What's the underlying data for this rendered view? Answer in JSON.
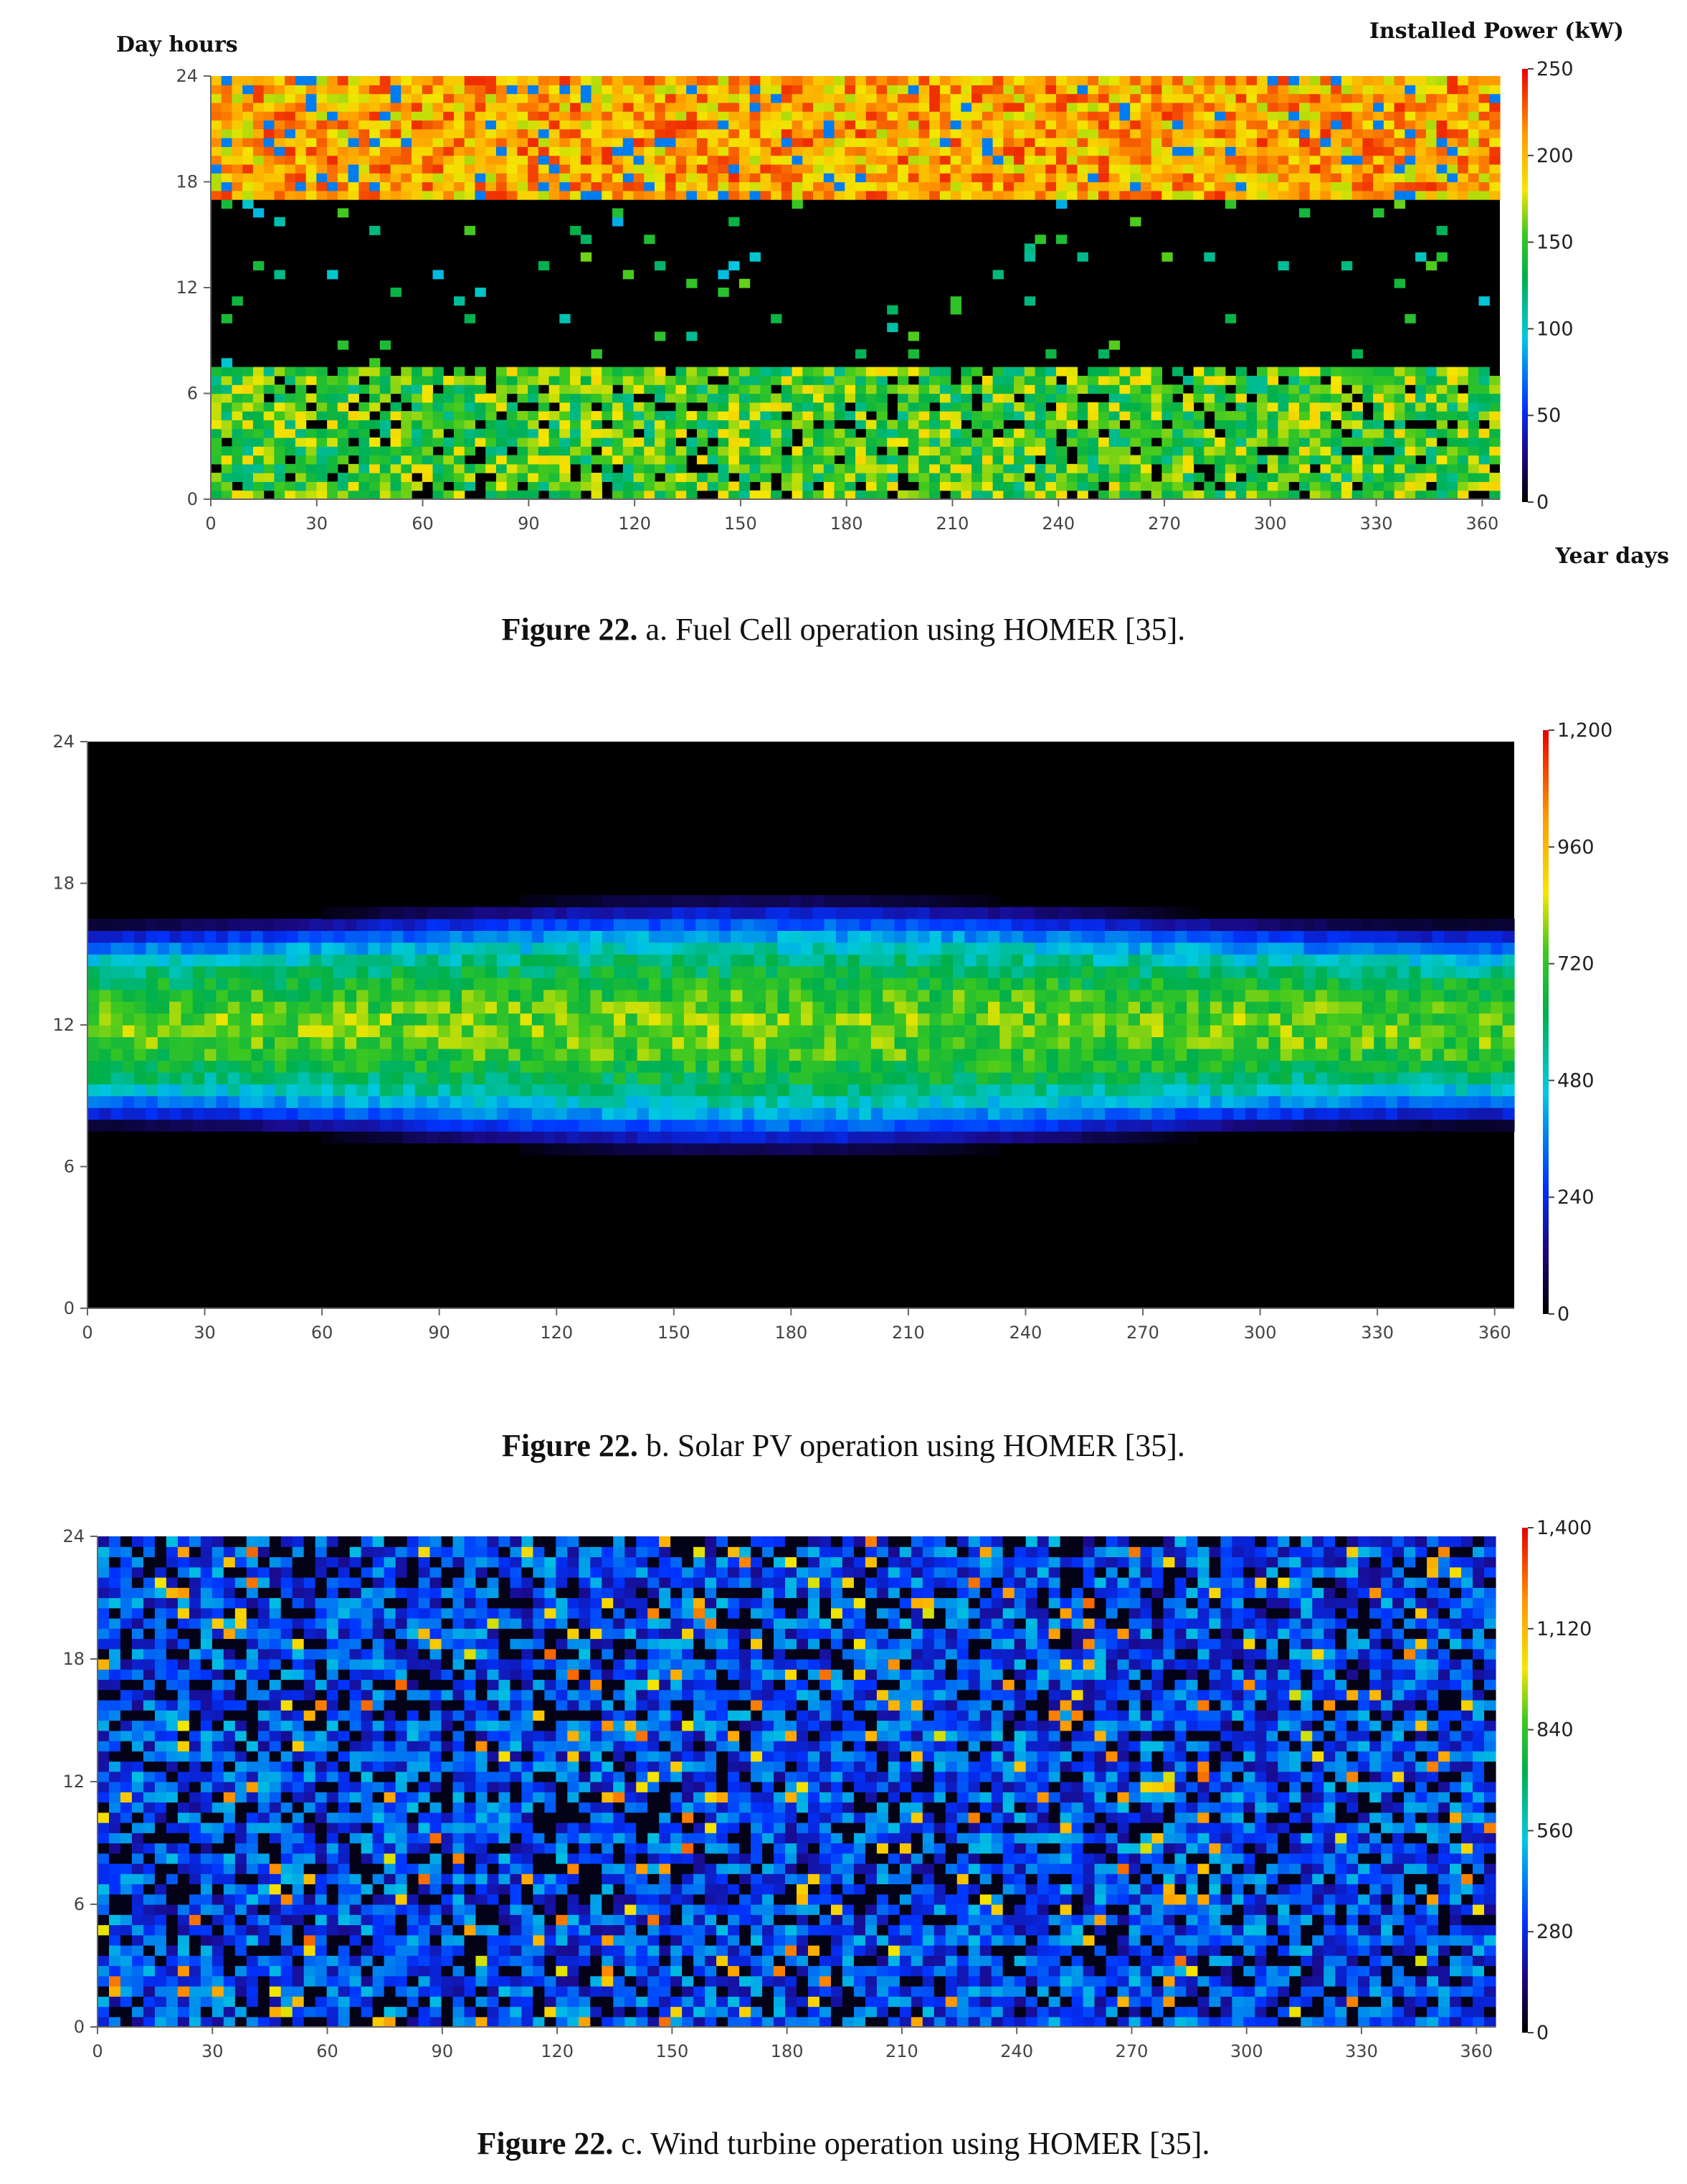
{
  "chart_data": [
    {
      "type": "heatmap",
      "id": "fuel-cell",
      "ylabel": "Day hours",
      "xlabel": "Year days",
      "colorbar_label": "Installed Power (kW)",
      "x_ticks": [
        "0",
        "30",
        "60",
        "90",
        "120",
        "150",
        "180",
        "210",
        "240",
        "270",
        "300",
        "330",
        "360"
      ],
      "y_ticks": [
        "0",
        "6",
        "12",
        "18",
        "24"
      ],
      "colorbar_ticks": [
        "0",
        "50",
        "100",
        "150",
        "200",
        "250"
      ],
      "xlim": [
        0,
        365
      ],
      "ylim": [
        0,
        24
      ],
      "zlim": [
        0,
        250
      ],
      "pattern": "off 8-17h mostly zero; 0-7h ~100-170 kW; 17-24h ~170-240 kW",
      "caption": {
        "figure": "Figure 22.",
        "text": " a. Fuel Cell operation using HOMER [35]."
      }
    },
    {
      "type": "heatmap",
      "id": "solar-pv",
      "ylabel": "",
      "xlabel": "",
      "colorbar_label": "",
      "x_ticks": [
        "0",
        "30",
        "60",
        "90",
        "120",
        "150",
        "180",
        "210",
        "240",
        "270",
        "300",
        "330",
        "360"
      ],
      "y_ticks": [
        "0",
        "6",
        "12",
        "18",
        "24"
      ],
      "colorbar_ticks": [
        "0",
        "240",
        "480",
        "720",
        "960",
        "1,200"
      ],
      "xlim": [
        0,
        365
      ],
      "ylim": [
        0,
        24
      ],
      "zlim": [
        0,
        1200
      ],
      "pattern": "daylight band ~7-17h, peak ~700-850 around noon, zero at night",
      "caption": {
        "figure": "Figure 22.",
        "text": " b. Solar PV operation using HOMER [35]."
      }
    },
    {
      "type": "heatmap",
      "id": "wind-turbine",
      "ylabel": "",
      "xlabel": "",
      "colorbar_label": "",
      "x_ticks": [
        "0",
        "30",
        "60",
        "90",
        "120",
        "150",
        "180",
        "210",
        "240",
        "270",
        "300",
        "330",
        "360"
      ],
      "y_ticks": [
        "0",
        "6",
        "12",
        "18",
        "24"
      ],
      "colorbar_ticks": [
        "0",
        "280",
        "560",
        "840",
        "1,120",
        "1,400"
      ],
      "xlim": [
        0,
        365
      ],
      "ylim": [
        0,
        24
      ],
      "zlim": [
        0,
        1400
      ],
      "pattern": "scattered vertical streaks, mostly 100-500 with occasional peaks ~1000",
      "caption": {
        "figure": "Figure 22.",
        "text": " c. Wind turbine operation using HOMER [35]."
      }
    }
  ]
}
